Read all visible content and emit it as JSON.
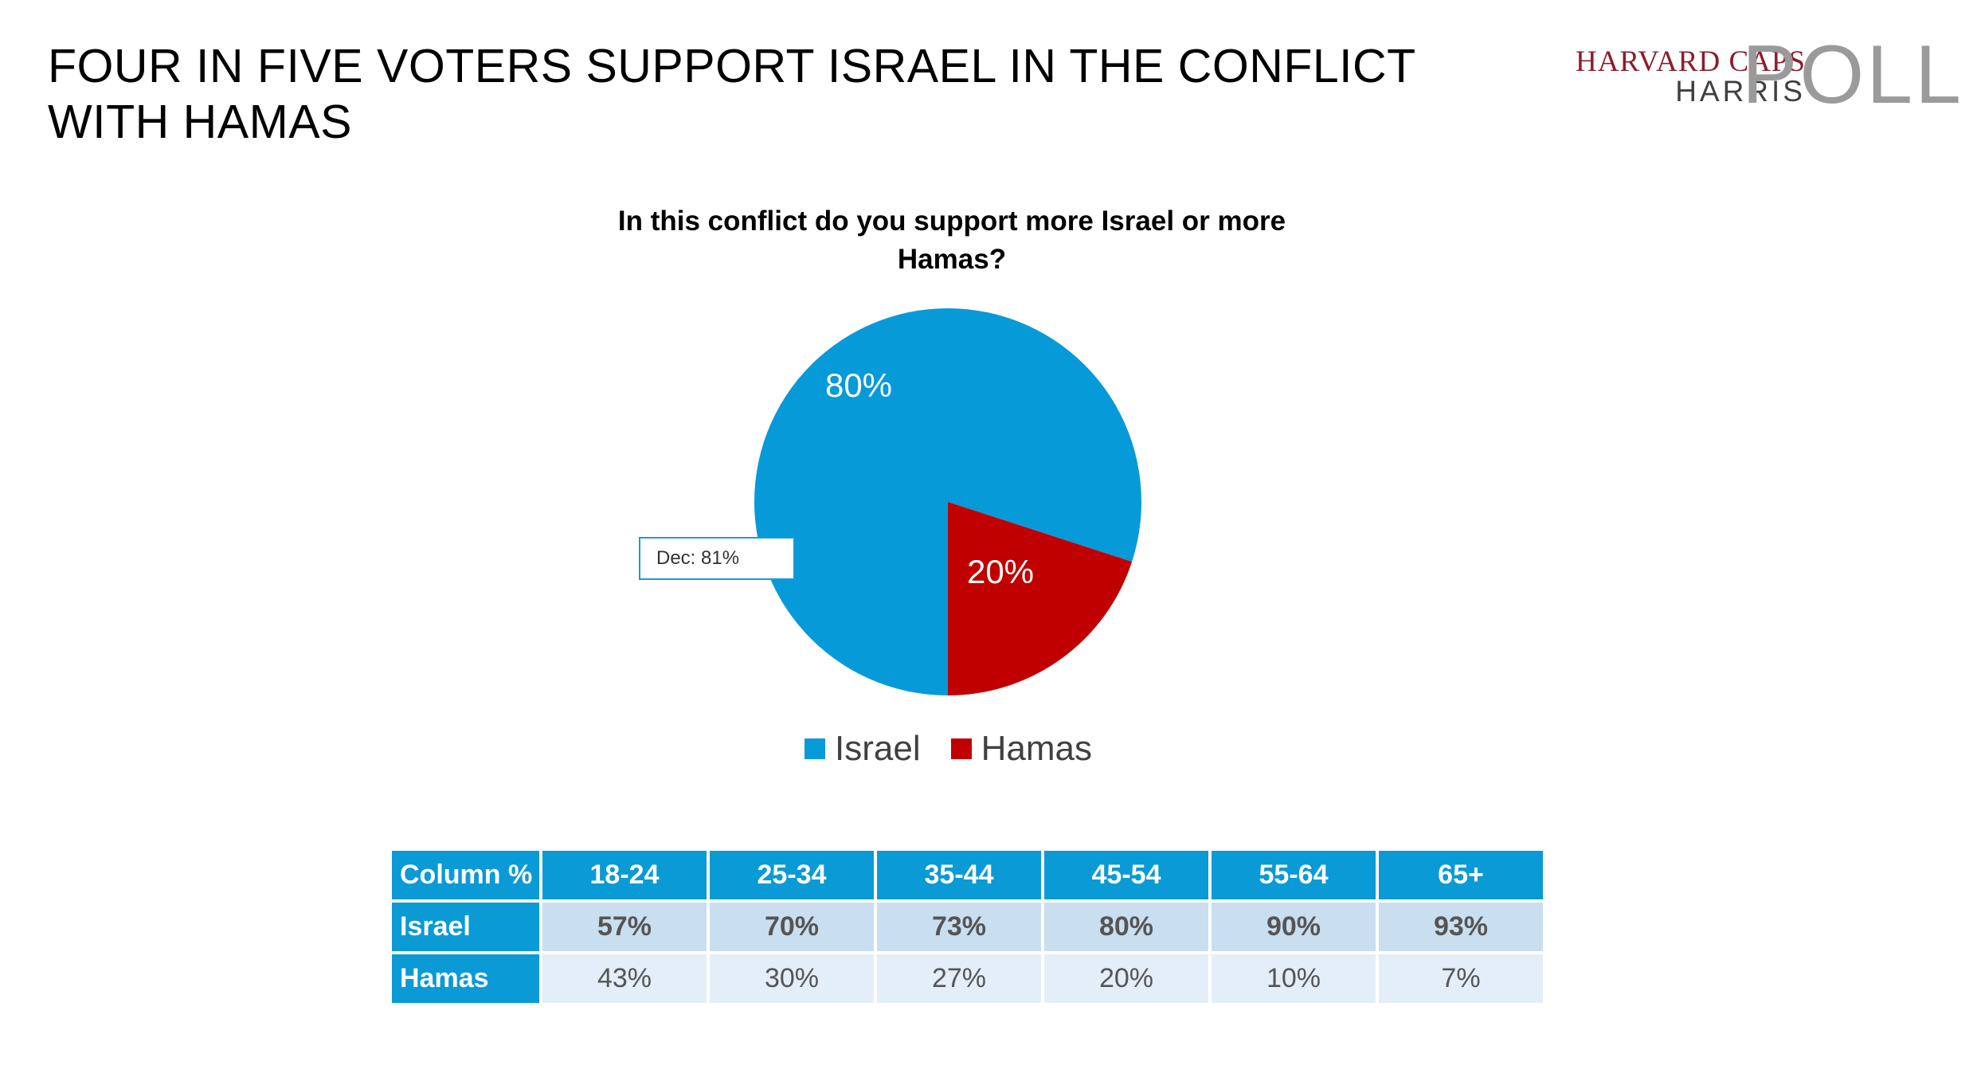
{
  "slide": {
    "title": "FOUR IN FIVE VOTERS SUPPORT ISRAEL IN THE CONFLICT WITH HAMAS"
  },
  "logo": {
    "line1": "HARVARD CAPS",
    "line2": "HARRIS",
    "word": "POLL",
    "colors": {
      "line1": "#8b1d2c",
      "line2": "#404040",
      "word": "#9a9a9a"
    }
  },
  "chart_data": {
    "type": "pie",
    "title": "In this conflict do you support more Israel or more Hamas?",
    "categories": [
      "Israel",
      "Hamas"
    ],
    "values": [
      80,
      20
    ],
    "labels": [
      "80%",
      "20%"
    ],
    "colors": [
      "#079ad8",
      "#c00000"
    ],
    "legend_position": "bottom",
    "annotation": "Dec: 81%"
  },
  "table": {
    "header": [
      "Column %",
      "18-24",
      "25-34",
      "35-44",
      "45-54",
      "55-64",
      "65+"
    ],
    "rows": [
      {
        "label": "Israel",
        "values": [
          "57%",
          "70%",
          "73%",
          "80%",
          "90%",
          "93%"
        ]
      },
      {
        "label": "Hamas",
        "values": [
          "43%",
          "30%",
          "27%",
          "20%",
          "10%",
          "7%"
        ]
      }
    ]
  }
}
